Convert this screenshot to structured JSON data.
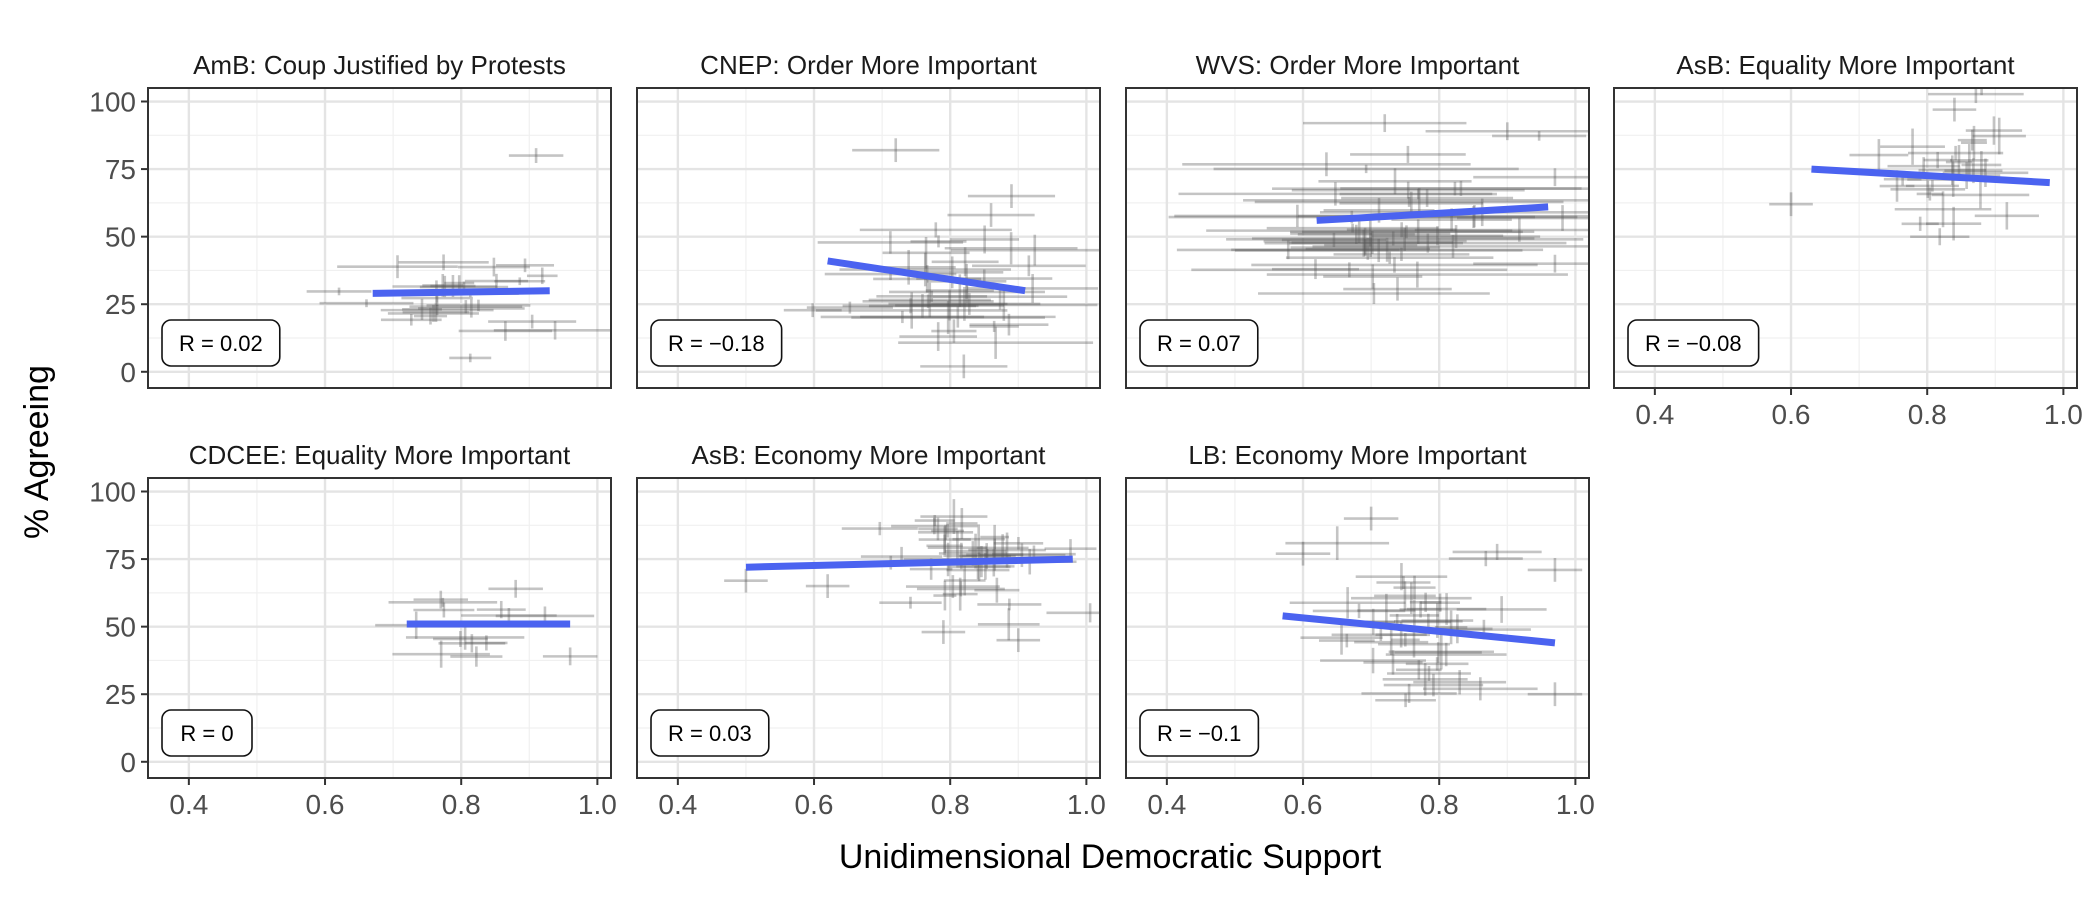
{
  "figure": {
    "ylabel": "% Agreeing",
    "xlabel": "Unidimensional Democratic Support",
    "colors": {
      "fit_line": "#4b63f0",
      "error_bars": "#555555",
      "grid": "#e4e4e4",
      "panel_border": "#333333",
      "tick_text": "#4d4d4d"
    },
    "xlim": [
      0.34,
      1.02
    ],
    "ylim": [
      -6,
      105
    ],
    "x_ticks": [
      "0.4",
      "0.6",
      "0.8",
      "1.0"
    ],
    "y_ticks": [
      "0",
      "25",
      "50",
      "75",
      "100"
    ]
  },
  "chart_data": [
    {
      "type": "scatter",
      "title": "AmB: Coup Justified by Protests",
      "annotation": "R = 0.02",
      "fit": {
        "x": [
          0.67,
          0.93
        ],
        "y": [
          29,
          30
        ]
      },
      "x_center": 0.81,
      "x_spread": 0.07,
      "x_err": 0.05,
      "y_center": 28,
      "y_spread": 8,
      "y_err": 2.5,
      "n_points": 30,
      "extra_points": [
        [
          0.91,
          80
        ]
      ]
    },
    {
      "type": "scatter",
      "title": "CNEP: Order More Important",
      "annotation": "R = −0.18",
      "fit": {
        "x": [
          0.62,
          0.91
        ],
        "y": [
          41,
          30
        ]
      },
      "x_center": 0.8,
      "x_spread": 0.08,
      "x_err": 0.08,
      "y_center": 33,
      "y_spread": 10,
      "y_err": 4,
      "n_points": 40,
      "extra_points": [
        [
          0.72,
          82
        ],
        [
          0.89,
          65
        ],
        [
          0.86,
          58
        ],
        [
          0.82,
          2
        ]
      ]
    },
    {
      "type": "scatter",
      "title": "WVS: Order More Important",
      "annotation": "R = 0.07",
      "fit": {
        "x": [
          0.62,
          0.96
        ],
        "y": [
          56,
          61
        ]
      },
      "x_center": 0.76,
      "x_spread": 0.1,
      "x_err": 0.15,
      "y_center": 54,
      "y_spread": 13,
      "y_err": 3,
      "n_points": 55,
      "extra_points": [
        [
          0.72,
          92
        ],
        [
          0.9,
          89
        ],
        [
          0.97,
          72
        ],
        [
          0.97,
          40
        ]
      ]
    },
    {
      "type": "scatter",
      "title": "AsB: Equality More Important",
      "annotation": "R = −0.08",
      "fit": {
        "x": [
          0.63,
          0.98
        ],
        "y": [
          75,
          70
        ]
      },
      "x_center": 0.83,
      "x_spread": 0.06,
      "x_err": 0.04,
      "y_center": 72,
      "y_spread": 12,
      "y_err": 4,
      "n_points": 30,
      "extra_points": [
        [
          0.6,
          62
        ],
        [
          0.84,
          97
        ]
      ]
    },
    {
      "type": "scatter",
      "title": "CDCEE: Equality More Important",
      "annotation": "R = 0",
      "fit": {
        "x": [
          0.72,
          0.96
        ],
        "y": [
          51,
          51
        ]
      },
      "x_center": 0.82,
      "x_spread": 0.06,
      "x_err": 0.05,
      "y_center": 50,
      "y_spread": 6,
      "y_err": 3,
      "n_points": 12,
      "extra_points": [
        [
          0.96,
          39
        ],
        [
          0.88,
          64
        ],
        [
          0.77,
          60
        ]
      ]
    },
    {
      "type": "scatter",
      "title": "AsB: Economy More Important",
      "annotation": "R = 0.03",
      "fit": {
        "x": [
          0.5,
          0.98
        ],
        "y": [
          72,
          75
        ]
      },
      "x_center": 0.83,
      "x_spread": 0.07,
      "x_err": 0.04,
      "y_center": 74,
      "y_spread": 10,
      "y_err": 4,
      "n_points": 45,
      "extra_points": [
        [
          0.5,
          67
        ],
        [
          0.62,
          65
        ],
        [
          0.9,
          45
        ],
        [
          0.79,
          48
        ]
      ]
    },
    {
      "type": "scatter",
      "title": "LB: Economy More Important",
      "annotation": "R = −0.1",
      "fit": {
        "x": [
          0.57,
          0.97
        ],
        "y": [
          54,
          44
        ]
      },
      "x_center": 0.79,
      "x_spread": 0.06,
      "x_err": 0.05,
      "y_center": 50,
      "y_spread": 16,
      "y_err": 4,
      "n_points": 45,
      "extra_points": [
        [
          0.97,
          25
        ],
        [
          0.97,
          71
        ],
        [
          0.7,
          90
        ],
        [
          0.6,
          77
        ]
      ]
    }
  ]
}
